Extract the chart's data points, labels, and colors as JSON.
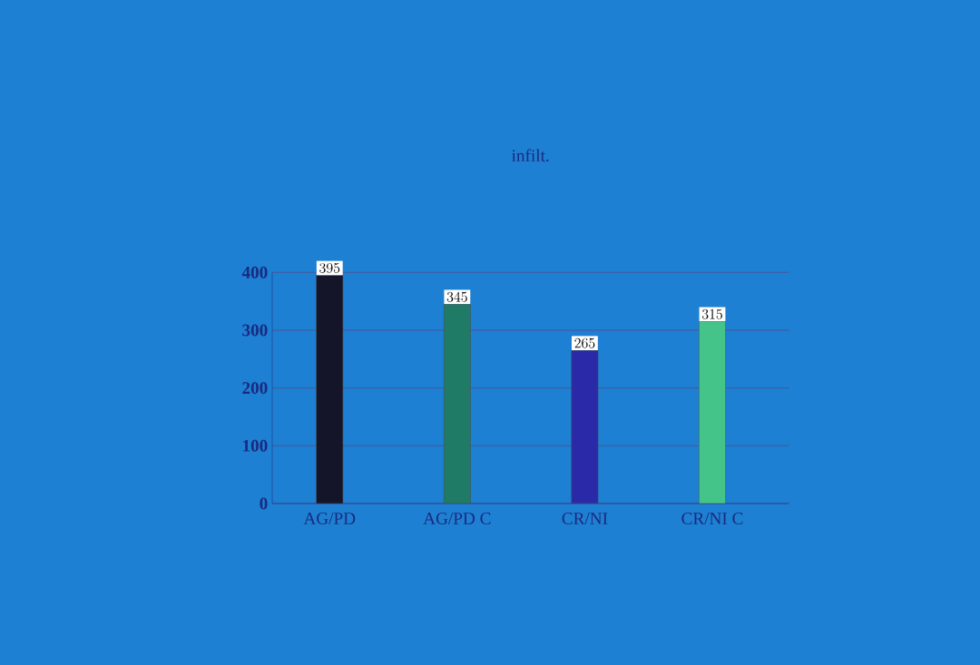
{
  "chart_data": {
    "type": "bar",
    "title": "infilt.",
    "categories": [
      "AG/PD",
      "AG/PD C",
      "CR/NI",
      "CR/NI C"
    ],
    "values": [
      395,
      345,
      265,
      315
    ],
    "colors": [
      "#15152a",
      "#1f7a66",
      "#2a2aa8",
      "#45c48a"
    ],
    "ylim": [
      0,
      400
    ],
    "yticks": [
      0,
      100,
      200,
      300,
      400
    ],
    "grid": "y",
    "data_labels": true
  }
}
